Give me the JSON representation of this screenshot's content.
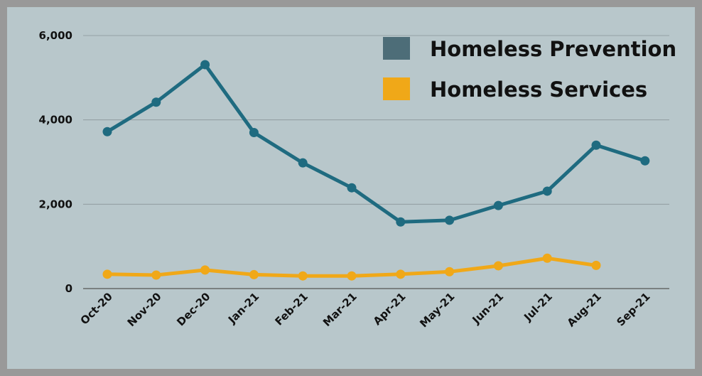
{
  "chart_data": {
    "type": "line",
    "title": "",
    "xlabel": "",
    "ylabel": "",
    "categories": [
      "Oct-20",
      "Nov-20",
      "Dec-20",
      "Jan-21",
      "Feb-21",
      "Mar-21",
      "Apr-21",
      "May-21",
      "Jun-21",
      "Jul-21",
      "Aug-21",
      "Sep-21"
    ],
    "ylim": [
      0,
      6000
    ],
    "yticks": [
      0,
      2000,
      4000,
      6000
    ],
    "ytick_labels": [
      "0",
      "2,000",
      "4,000",
      "6,000"
    ],
    "grid": true,
    "legend_position": "top-right",
    "series": [
      {
        "name": "Homeless Prevention",
        "color": "#1f6b80",
        "legend_color": "#4d6d78",
        "values": [
          3720,
          4420,
          5310,
          3700,
          2980,
          2390,
          1580,
          1620,
          1970,
          2310,
          3400,
          3030
        ]
      },
      {
        "name": "Homeless Services",
        "color": "#f0a818",
        "legend_color": "#f0a818",
        "values": [
          340,
          320,
          440,
          330,
          300,
          300,
          340,
          400,
          540,
          720,
          550,
          null
        ]
      }
    ]
  }
}
